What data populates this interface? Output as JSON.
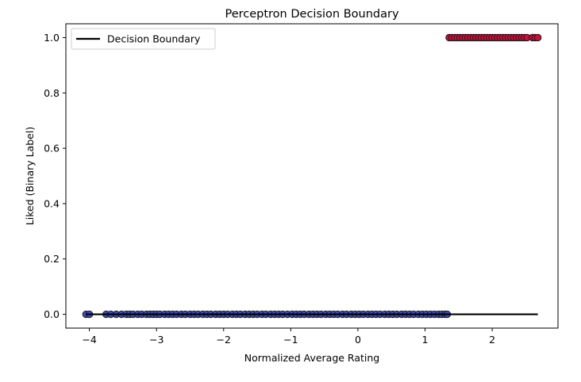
{
  "chart_data": {
    "type": "scatter",
    "title": "Perceptron Decision Boundary",
    "xlabel": "Normalized Average Rating",
    "ylabel": "Liked (Binary Label)",
    "xlim": [
      -4.35,
      2.98
    ],
    "ylim": [
      -0.05,
      1.05
    ],
    "xticks": [
      -4,
      -3,
      -2,
      -1,
      0,
      1,
      2
    ],
    "xtick_labels": [
      "−4",
      "−3",
      "−2",
      "−1",
      "0",
      "1",
      "2"
    ],
    "yticks": [
      0.0,
      0.2,
      0.4,
      0.6,
      0.8,
      1.0
    ],
    "ytick_labels": [
      "0.0",
      "0.2",
      "0.4",
      "0.6",
      "0.8",
      "1.0"
    ],
    "grid": false,
    "legend": {
      "placement": "top-left",
      "entries": [
        "Decision Boundary"
      ]
    },
    "colors": {
      "class0": "#3b4cc0",
      "class1": "#c8103c",
      "boundary": "#000000"
    },
    "boundary": {
      "x": [
        -4.05,
        2.68
      ],
      "y": [
        0,
        0
      ]
    },
    "series": [
      {
        "label": 0,
        "x": [
          -4.05,
          -4.0,
          -3.75,
          -3.68,
          -3.6,
          -3.52,
          -3.45,
          -3.4,
          -3.35,
          -3.28,
          -3.22,
          -3.15,
          -3.1,
          -3.05,
          -3.0,
          -2.95,
          -2.88,
          -2.82,
          -2.76,
          -2.7,
          -2.63,
          -2.57,
          -2.5,
          -2.44,
          -2.38,
          -2.31,
          -2.25,
          -2.19,
          -2.12,
          -2.06,
          -2.0,
          -1.94,
          -1.87,
          -1.81,
          -1.75,
          -1.68,
          -1.62,
          -1.56,
          -1.5,
          -1.43,
          -1.37,
          -1.3,
          -1.24,
          -1.18,
          -1.12,
          -1.05,
          -0.98,
          -0.92,
          -0.86,
          -0.8,
          -0.73,
          -0.67,
          -0.61,
          -0.55,
          -0.48,
          -0.42,
          -0.36,
          -0.3,
          -0.23,
          -0.17,
          -0.1,
          -0.04,
          0.02,
          0.08,
          0.15,
          0.21,
          0.27,
          0.33,
          0.4,
          0.46,
          0.52,
          0.58,
          0.65,
          0.71,
          0.77,
          0.83,
          0.9,
          0.96,
          1.02,
          1.08,
          1.14,
          1.2,
          1.25,
          1.3,
          1.33
        ],
        "y": 0
      },
      {
        "label": 1,
        "x": [
          1.36,
          1.4,
          1.44,
          1.48,
          1.52,
          1.56,
          1.6,
          1.64,
          1.68,
          1.72,
          1.76,
          1.8,
          1.84,
          1.88,
          1.92,
          1.96,
          2.0,
          2.04,
          2.08,
          2.12,
          2.16,
          2.2,
          2.24,
          2.28,
          2.32,
          2.36,
          2.4,
          2.44,
          2.48,
          2.52,
          2.6,
          2.64,
          2.68
        ],
        "y": 1
      }
    ]
  }
}
